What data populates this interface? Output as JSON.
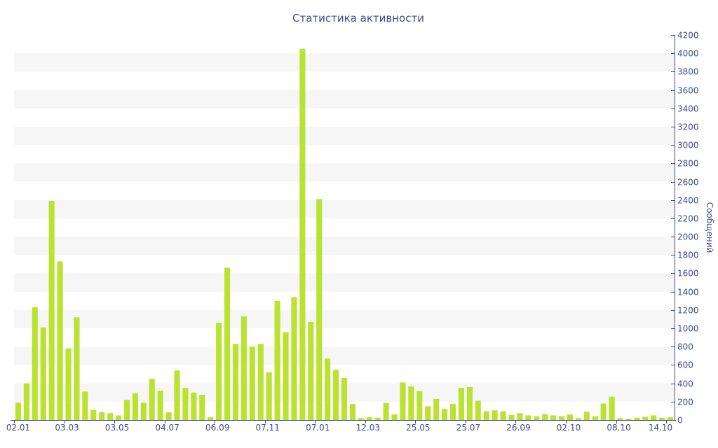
{
  "chart_data": {
    "type": "bar",
    "title": "Статистика активности",
    "ylabel": "Сообщений",
    "xlabel": "",
    "ylim": [
      0,
      4200
    ],
    "yticks": [
      0,
      200,
      400,
      600,
      800,
      1000,
      1200,
      1400,
      1600,
      1800,
      2000,
      2200,
      2400,
      2600,
      2800,
      3000,
      3200,
      3400,
      3600,
      3800,
      4000,
      4200
    ],
    "xtick_labels": [
      {
        "index": 0,
        "label": "02.01"
      },
      {
        "index": 6,
        "label": "03.03"
      },
      {
        "index": 12,
        "label": "03.05"
      },
      {
        "index": 18,
        "label": "04.07"
      },
      {
        "index": 24,
        "label": "06.09"
      },
      {
        "index": 30,
        "label": "07.11"
      },
      {
        "index": 36,
        "label": "07.01"
      },
      {
        "index": 42,
        "label": "12.03"
      },
      {
        "index": 48,
        "label": "25.05"
      },
      {
        "index": 54,
        "label": "25.07"
      },
      {
        "index": 60,
        "label": "26.09"
      },
      {
        "index": 66,
        "label": "02.10"
      },
      {
        "index": 72,
        "label": "08.10"
      },
      {
        "index": 78,
        "label": "14.10"
      }
    ],
    "values": [
      190,
      400,
      1230,
      1010,
      2390,
      1730,
      780,
      1120,
      310,
      110,
      85,
      75,
      50,
      220,
      290,
      190,
      450,
      320,
      85,
      540,
      350,
      300,
      275,
      30,
      1060,
      1660,
      830,
      1130,
      800,
      830,
      520,
      1300,
      960,
      1340,
      4050,
      1070,
      2410,
      670,
      550,
      460,
      175,
      20,
      30,
      25,
      185,
      60,
      410,
      365,
      315,
      150,
      230,
      120,
      175,
      350,
      360,
      210,
      95,
      105,
      95,
      55,
      75,
      50,
      40,
      65,
      50,
      40,
      60,
      20,
      90,
      40,
      180,
      255,
      20,
      15,
      25,
      35,
      50,
      25,
      30
    ],
    "bar_color": "#bbe131",
    "band_color": "#f6f6f6",
    "text_color": "#3e4a8a",
    "axis_color": "#3e4a8a",
    "grid": "alternating horizontal bands",
    "legend": "none"
  }
}
